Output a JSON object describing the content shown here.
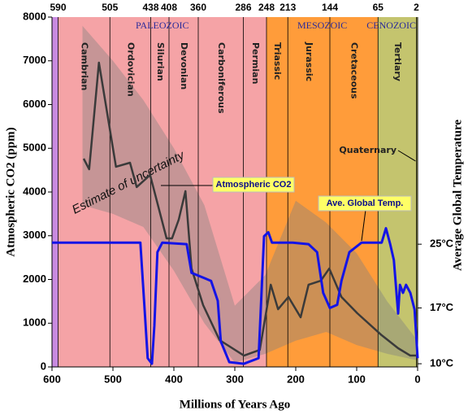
{
  "chart_data": {
    "type": "line",
    "xlabel": "Millions of Years Ago",
    "ylabel": "Atmospheric CO2 (ppm)",
    "y2label": "Average Global Temperature",
    "xlim": [
      600,
      0
    ],
    "xticks": [
      600,
      500,
      400,
      300,
      200,
      100,
      0
    ],
    "ylim": [
      0,
      8000
    ],
    "yticks": [
      0,
      1000,
      2000,
      3000,
      4000,
      5000,
      6000,
      7000,
      8000
    ],
    "y2lim": [
      9.6,
      53.5
    ],
    "y2ticks": [
      {
        "value": 25,
        "label": "25°C"
      },
      {
        "value": 17,
        "label": "17°C"
      },
      {
        "value": 10,
        "label": "10°C"
      }
    ],
    "boundaries": [
      590,
      505,
      438,
      408,
      360,
      286,
      248,
      213,
      144,
      65,
      2
    ],
    "eras": [
      {
        "name": "PALEOZOIC",
        "start": 590,
        "end": 248,
        "color": "#f5a3a6"
      },
      {
        "name": "MESOZOIC",
        "start": 248,
        "end": 65,
        "color": "#ff9c3a"
      },
      {
        "name": "CENOZOIC",
        "start": 65,
        "end": 0,
        "color": "#c4c46e"
      }
    ],
    "periods": [
      "Cambrian",
      "Ordovician",
      "Silurian",
      "Devonian",
      "Carboniferous",
      "Permian",
      "Triassic",
      "Jurassic",
      "Cretaceous",
      "Tertiary",
      "Quaternary"
    ],
    "uncertainty": {
      "label": "Estimate of uncertainty",
      "color": "#808080",
      "x": [
        550,
        500,
        450,
        400,
        350,
        300,
        250,
        200,
        150,
        100,
        50,
        0
      ],
      "upper": [
        7800,
        7000,
        6100,
        5000,
        3700,
        1400,
        2100,
        3800,
        3300,
        2600,
        1500,
        600
      ],
      "lower": [
        3700,
        3500,
        3200,
        2200,
        1000,
        100,
        300,
        600,
        800,
        500,
        300,
        150
      ]
    },
    "series": [
      {
        "name": "Atmospheric CO2",
        "color": "#3a3a3a",
        "x": [
          548,
          539,
          523,
          495,
          472,
          461,
          439,
          412,
          403,
          392,
          381,
          371,
          352,
          325,
          285,
          259,
          241,
          229,
          212,
          192,
          179,
          159,
          145,
          125,
          99,
          59,
          32,
          12,
          0
        ],
        "values": [
          4763,
          4520,
          6958,
          4577,
          4670,
          4112,
          4390,
          2940,
          2940,
          3370,
          4020,
          2250,
          1414,
          614,
          260,
          390,
          1880,
          1320,
          1600,
          1135,
          1880,
          1970,
          2250,
          1600,
          1228,
          725,
          428,
          260,
          260
        ]
      },
      {
        "name": "Ave. Global Temp.",
        "color": "#1414e6",
        "axis": "y2",
        "x": [
          600,
          455,
          448,
          443,
          436,
          432,
          427,
          419,
          379,
          371,
          339,
          328,
          323,
          309,
          285,
          261,
          252,
          245,
          239,
          205,
          179,
          165,
          155,
          144,
          132,
          125,
          112,
          92,
          59,
          52,
          45,
          39,
          32,
          29,
          24,
          19,
          12,
          5,
          0
        ],
        "values": [
          25.2,
          25.2,
          16.8,
          10.7,
          10,
          14.8,
          24,
          25.2,
          25,
          21.4,
          20.4,
          17.9,
          12.8,
          10.2,
          10,
          10.7,
          26,
          26.5,
          25.2,
          25.2,
          25,
          24,
          18.9,
          17,
          17.4,
          20.4,
          24,
          25.2,
          25.2,
          27,
          25,
          23,
          16.3,
          19.9,
          18.9,
          19.9,
          18.9,
          16.8,
          10.7
        ]
      }
    ]
  }
}
